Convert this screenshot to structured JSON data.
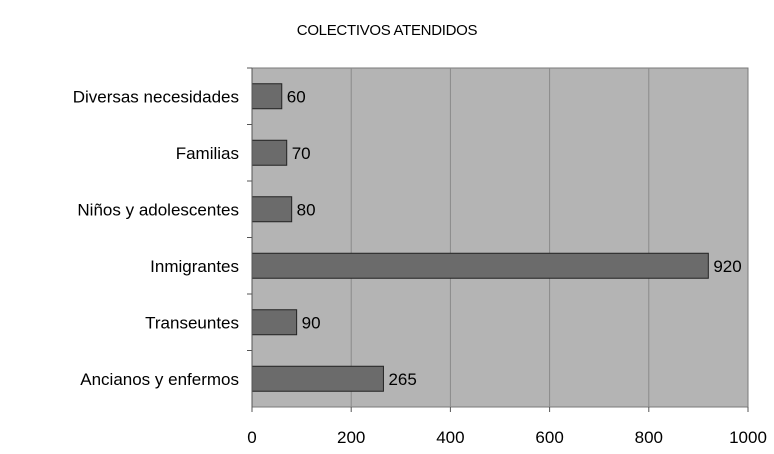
{
  "chart_data": {
    "type": "bar",
    "orientation": "horizontal",
    "title": "COLECTIVOS ATENDIDOS",
    "categories": [
      "Diversas necesidades",
      "Familias",
      "Niños y adolescentes",
      "Inmigrantes",
      "Transeuntes",
      "Ancianos y enfermos"
    ],
    "values": [
      60,
      70,
      80,
      920,
      90,
      265
    ],
    "data_labels": [
      "60",
      "70",
      "80",
      "920",
      "90",
      "265"
    ],
    "xlim": [
      0,
      1000
    ],
    "x_ticks": [
      "0",
      "200",
      "400",
      "600",
      "800",
      "1000"
    ],
    "grid": "vertical",
    "legend": "none",
    "colors": {
      "plot_background": "#b4b4b4",
      "bar_fill": "#6b6b6b",
      "bar_stroke": "#222222",
      "grid_line": "#8a8a8a"
    }
  }
}
